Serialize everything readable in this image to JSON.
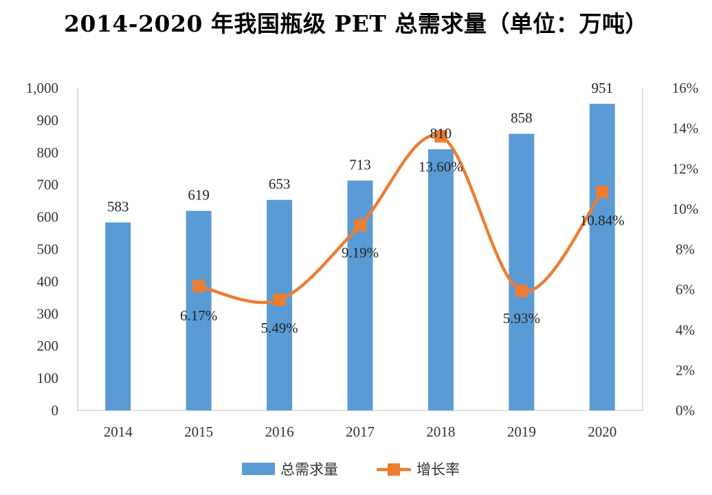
{
  "chart_data": {
    "type": "bar+line",
    "title": "2014-2020 年我国瓶级 PET 总需求量（单位：万吨）",
    "categories": [
      "2014",
      "2015",
      "2016",
      "2017",
      "2018",
      "2019",
      "2020"
    ],
    "series": [
      {
        "name": "总需求量",
        "type": "bar",
        "axis": "left",
        "values": [
          583,
          619,
          653,
          713,
          810,
          858,
          951
        ],
        "labels": [
          "583",
          "619",
          "653",
          "713",
          "810",
          "858",
          "951"
        ],
        "color": "#5b9bd5"
      },
      {
        "name": "增长率",
        "type": "line",
        "axis": "right",
        "values": [
          null,
          6.17,
          5.49,
          9.19,
          13.6,
          5.93,
          10.84
        ],
        "labels": [
          null,
          "6.17%",
          "5.49%",
          "9.19%",
          "13.60%",
          "5.93%",
          "10.84%"
        ],
        "color": "#ed7d31"
      }
    ],
    "y_left": {
      "min": 0,
      "max": 1000,
      "ticks": [
        0,
        100,
        200,
        300,
        400,
        500,
        600,
        700,
        800,
        900,
        1000
      ],
      "tick_labels": [
        "0",
        "100",
        "200",
        "300",
        "400",
        "500",
        "600",
        "700",
        "800",
        "900",
        "1,000"
      ]
    },
    "y_right": {
      "min": 0,
      "max": 16,
      "ticks": [
        0,
        2,
        4,
        6,
        8,
        10,
        12,
        14,
        16
      ],
      "tick_labels": [
        "0%",
        "2%",
        "4%",
        "6%",
        "8%",
        "10%",
        "12%",
        "14%",
        "16%"
      ]
    },
    "grid": false,
    "legend_position": "bottom-center"
  }
}
